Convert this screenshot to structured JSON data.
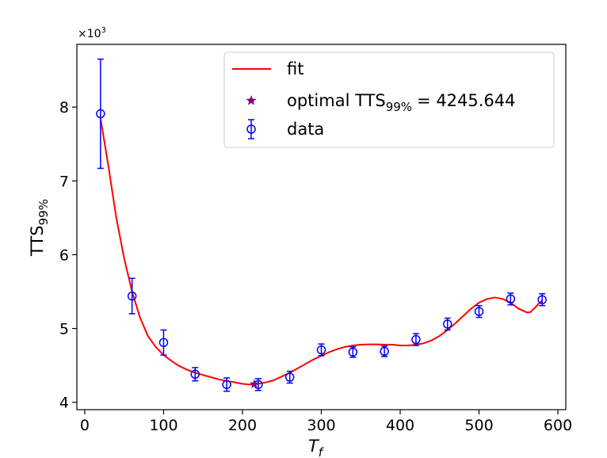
{
  "chart_data": {
    "type": "scatter",
    "title": "",
    "xlabel": "T_f",
    "xlabel_main": "T",
    "xlabel_sub": "f",
    "ylabel": "TTS99%",
    "ylabel_main": "TTS",
    "ylabel_sub": "99%",
    "y_multiplier_base": "×10",
    "y_multiplier_exp": "3",
    "xlim": [
      -10,
      610
    ],
    "ylim": [
      3.9,
      8.85
    ],
    "x_ticks": [
      0,
      100,
      200,
      300,
      400,
      500,
      600
    ],
    "y_ticks": [
      4,
      5,
      6,
      7,
      8
    ],
    "grid": false,
    "legend_position": "top-right",
    "series": [
      {
        "name": "data",
        "kind": "errorbar",
        "color": "#0000ff",
        "x": [
          20,
          60,
          100,
          140,
          180,
          220,
          260,
          300,
          340,
          380,
          420,
          460,
          500,
          540,
          580
        ],
        "y": [
          7.91,
          5.44,
          4.81,
          4.38,
          4.24,
          4.24,
          4.34,
          4.71,
          4.68,
          4.69,
          4.85,
          5.06,
          5.23,
          5.4,
          5.39
        ],
        "yerr": [
          0.74,
          0.24,
          0.17,
          0.09,
          0.09,
          0.08,
          0.08,
          0.08,
          0.07,
          0.07,
          0.08,
          0.08,
          0.08,
          0.08,
          0.08
        ]
      },
      {
        "name": "fit",
        "kind": "line",
        "color": "#ff0000",
        "x": [
          20,
          30,
          40,
          50,
          60,
          70,
          80,
          90,
          100,
          110,
          120,
          130,
          140,
          150,
          160,
          170,
          180,
          190,
          200,
          210,
          215,
          220,
          230,
          240,
          250,
          260,
          270,
          280,
          290,
          300,
          310,
          320,
          330,
          340,
          350,
          360,
          370,
          380,
          390,
          400,
          410,
          420,
          430,
          440,
          450,
          460,
          470,
          480,
          490,
          500,
          510,
          520,
          530,
          540,
          550,
          560,
          565,
          570,
          575,
          580
        ],
        "y": [
          7.85,
          7.2,
          6.5,
          5.95,
          5.5,
          5.15,
          4.9,
          4.75,
          4.64,
          4.56,
          4.49,
          4.44,
          4.4,
          4.37,
          4.34,
          4.31,
          4.29,
          4.27,
          4.25,
          4.24,
          4.245,
          4.25,
          4.27,
          4.3,
          4.35,
          4.4,
          4.46,
          4.52,
          4.58,
          4.63,
          4.68,
          4.72,
          4.75,
          4.77,
          4.78,
          4.785,
          4.785,
          4.78,
          4.78,
          4.77,
          4.77,
          4.78,
          4.8,
          4.84,
          4.9,
          4.98,
          5.07,
          5.17,
          5.27,
          5.35,
          5.4,
          5.42,
          5.4,
          5.35,
          5.27,
          5.22,
          5.22,
          5.27,
          5.33,
          5.38
        ]
      },
      {
        "name": "optimal",
        "kind": "marker",
        "color": "#800080",
        "x": [
          215
        ],
        "y": [
          4.2456
        ]
      }
    ],
    "legend": {
      "fit": "fit",
      "optimal_prefix": "optimal TTS",
      "optimal_sub": "99%",
      "optimal_suffix": "= 4245.644",
      "data": "data"
    }
  }
}
